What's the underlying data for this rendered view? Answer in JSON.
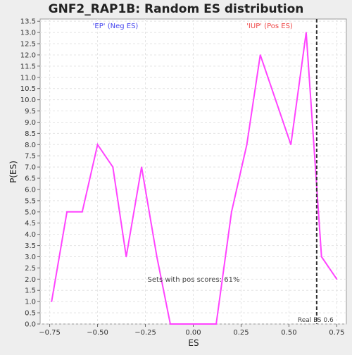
{
  "chart_data": {
    "type": "line",
    "title": "GNF2_RAP1B: Random ES distribution",
    "xlabel": "ES",
    "ylabel": "P(ES)",
    "xlim": [
      -0.8,
      0.8
    ],
    "ylim": [
      0,
      13.6
    ],
    "x_ticks": [
      -0.75,
      -0.5,
      -0.25,
      0.0,
      0.25,
      0.5,
      0.75
    ],
    "x_tick_labels": [
      "−0.75",
      "−0.50",
      "−0.25",
      "0.00",
      "0.25",
      "0.50",
      "0.75"
    ],
    "y_ticks": [
      0.0,
      0.5,
      1.0,
      1.5,
      2.0,
      2.5,
      3.0,
      3.5,
      4.0,
      4.5,
      5.0,
      5.5,
      6.0,
      6.5,
      7.0,
      7.5,
      8.0,
      8.5,
      9.0,
      9.5,
      10.0,
      10.5,
      11.0,
      11.5,
      12.0,
      12.5,
      13.0,
      13.5
    ],
    "y_tick_labels": [
      "0.0",
      "0.5",
      "1.0",
      "1.5",
      "2.0",
      "2.5",
      "3.0",
      "3.5",
      "4.0",
      "4.5",
      "5.0",
      "5.5",
      "6.0",
      "6.5",
      "7.0",
      "7.5",
      "8.0",
      "8.5",
      "9.0",
      "9.5",
      "10.0",
      "10.5",
      "11.0",
      "11.5",
      "12.0",
      "12.5",
      "13.0",
      "13.5"
    ],
    "grid": true,
    "series": [
      {
        "color": "#ff44ff",
        "x": [
          -0.74,
          -0.66,
          -0.58,
          -0.5,
          -0.42,
          -0.35,
          -0.27,
          -0.19,
          -0.12,
          -0.04,
          0.04,
          0.12,
          0.2,
          0.28,
          0.35,
          0.43,
          0.51,
          0.59,
          0.67,
          0.75
        ],
        "y": [
          1,
          5,
          5,
          8,
          7,
          3,
          7,
          3,
          0,
          0,
          0,
          0,
          5,
          8,
          12,
          10,
          8,
          13,
          3,
          2
        ]
      }
    ],
    "real_es": {
      "x": 0.645,
      "label": "Real ES 0.6",
      "color": "#333333"
    },
    "annotations": [
      {
        "text": "'EP' (Neg ES)",
        "color": "#4444ee",
        "position": "top-left"
      },
      {
        "text": "'IUP' (Pos ES)",
        "color": "#ee4444",
        "position": "top-right"
      },
      {
        "text": "Sets with pos scores: 61%",
        "color": "#444444",
        "position": "bottom-center"
      }
    ]
  }
}
